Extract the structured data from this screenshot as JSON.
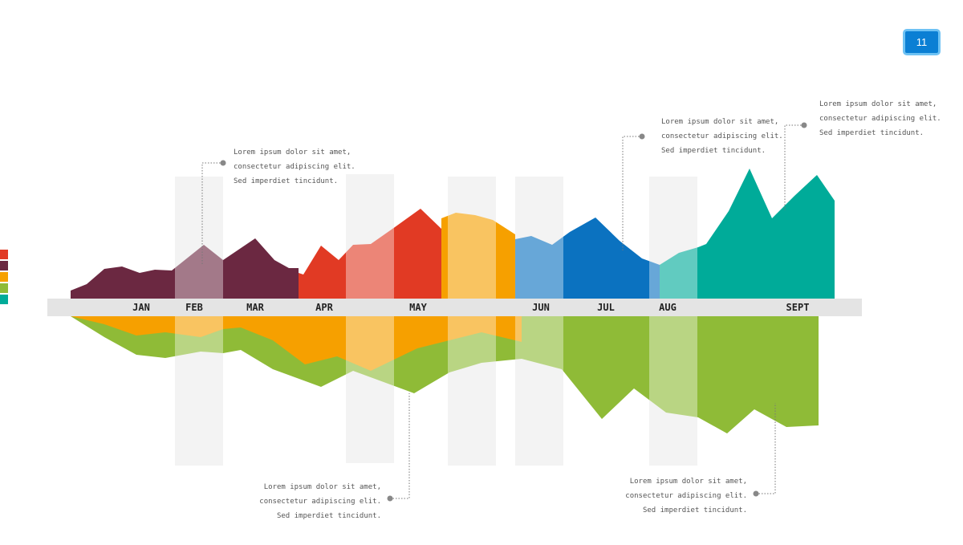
{
  "page_number": "11",
  "legend_colors": [
    "#e13a24",
    "#6b2841",
    "#f6a000",
    "#8fbb37",
    "#00ab99"
  ],
  "notes": [
    {
      "lines": [
        "Lorem ipsum dolor sit amet,",
        "consectetur adipiscing elit.",
        "Sed imperdiet tincidunt."
      ]
    },
    {
      "lines": [
        "Lorem ipsum dolor sit amet,",
        "consectetur adipiscing elit.",
        "Sed imperdiet tincidunt."
      ]
    },
    {
      "lines": [
        "Lorem ipsum dolor sit amet,",
        "consectetur adipiscing elit.",
        "Sed imperdiet tincidunt."
      ]
    },
    {
      "lines": [
        "Lorem ipsum dolor sit amet,",
        "consectetur adipiscing elit.",
        "Sed imperdiet tincidunt."
      ]
    },
    {
      "lines": [
        "Lorem ipsum dolor sit amet,",
        "consectetur adipiscing elit.",
        "Sed imperdiet tincidunt."
      ]
    }
  ],
  "chart_data": {
    "type": "area",
    "title": "",
    "xlabel": "",
    "ylabel": "",
    "categories": [
      "JAN",
      "FEB",
      "MAR",
      "APR",
      "MAY",
      "JUN",
      "JUL",
      "AUG",
      "SEPT"
    ],
    "grid": false,
    "highlight_bands": [
      "FEB",
      "APR–MAY",
      "MAY–JUN",
      "JUN",
      "AUG"
    ],
    "series_above": [
      {
        "color": "#6b2841",
        "values": [
          10,
          32,
          27,
          33,
          67,
          48,
          29
        ]
      },
      {
        "color": "#e13a24",
        "values": [
          32,
          66,
          44,
          67,
          89,
          112,
          87
        ]
      },
      {
        "color": "#f6a000",
        "values": [
          107,
          100,
          80
        ]
      },
      {
        "color": "#0b72c0",
        "values": [
          74,
          75,
          66,
          101,
          72,
          50,
          42
        ]
      },
      {
        "color": "#00ab99",
        "values": [
          42,
          57,
          64,
          109,
          162,
          100,
          128,
          154,
          122
        ]
      }
    ],
    "series_below": [
      {
        "color": "#f6a000",
        "values": [
          0,
          24,
          18,
          42,
          60,
          68,
          55,
          86,
          40,
          20,
          30,
          28
        ]
      },
      {
        "color": "#8fbb37",
        "values": [
          0,
          54,
          88,
          59,
          90,
          68,
          97,
          57,
          47,
          98,
          128,
          96,
          120,
          146,
          116,
          138
        ]
      }
    ]
  }
}
